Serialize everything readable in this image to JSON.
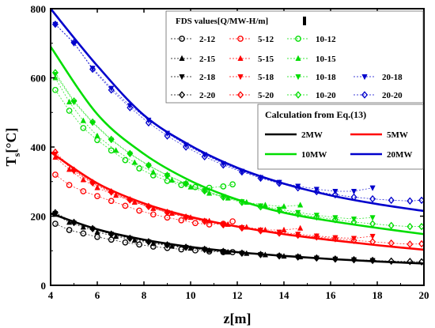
{
  "chart_data": {
    "type": "scatter",
    "xlabel": "z[m]",
    "ylabel_main": "T",
    "ylabel_sub": "s",
    "ylabel_unit": "[°C]",
    "xlim": [
      4,
      20
    ],
    "ylim": [
      0,
      800
    ],
    "xticks": [
      4,
      6,
      8,
      10,
      12,
      14,
      16,
      18,
      20
    ],
    "yticks": [
      0,
      200,
      400,
      600,
      800
    ],
    "colors": {
      "2MW": "#000000",
      "5MW": "#ff0000",
      "10MW": "#00dd00",
      "20MW": "#0000cc"
    },
    "legend_fds_title": "FDS values[Q/MW-H/m]",
    "legend_calc_title": "Calculation from Eq.(13)",
    "fds_legend": [
      [
        "2-12",
        "5-12",
        "10-12",
        ""
      ],
      [
        "2-15",
        "5-15",
        "10-15",
        ""
      ],
      [
        "2-18",
        "5-18",
        "10-18",
        "20-18"
      ],
      [
        "2-20",
        "5-20",
        "10-20",
        "20-20"
      ]
    ],
    "calc_legend": [
      {
        "name": "2MW",
        "color": "#000000"
      },
      {
        "name": "5MW",
        "color": "#ff0000"
      },
      {
        "name": "10MW",
        "color": "#00dd00"
      },
      {
        "name": "20MW",
        "color": "#0000cc"
      }
    ],
    "calc_curves": [
      {
        "name": "2MW",
        "color": "#000000",
        "x": [
          4,
          6,
          8,
          10,
          12,
          14,
          16,
          18,
          20
        ],
        "y": [
          208,
          162,
          132,
          111,
          96,
          85,
          76,
          69,
          63
        ]
      },
      {
        "name": "5MW",
        "color": "#ff0000",
        "x": [
          4,
          6,
          8,
          10,
          12,
          14,
          16,
          18,
          20
        ],
        "y": [
          385,
          295,
          237,
          198,
          170,
          148,
          131,
          116,
          103
        ]
      },
      {
        "name": "10MW",
        "color": "#00dd00",
        "x": [
          4,
          6,
          8,
          10,
          12,
          14,
          16,
          18,
          20
        ],
        "y": [
          690,
          495,
          380,
          302,
          248,
          210,
          186,
          166,
          148
        ]
      },
      {
        "name": "20MW",
        "color": "#0000cc",
        "x": [
          4,
          6,
          8,
          10,
          12,
          14,
          16,
          18,
          20
        ],
        "y": [
          800,
          635,
          492,
          404,
          340,
          294,
          260,
          235,
          215
        ]
      }
    ],
    "fds_series": [
      {
        "name": "2-12",
        "color": "#000000",
        "marker": "circle",
        "x": [
          4.2,
          4.8,
          5.4,
          6.0,
          6.6,
          7.2,
          7.8,
          8.4,
          9.0,
          9.6,
          10.2,
          10.8,
          11.4,
          11.8
        ],
        "y": [
          178,
          160,
          150,
          140,
          132,
          124,
          118,
          112,
          108,
          104,
          101,
          98,
          96,
          96
        ]
      },
      {
        "name": "2-15",
        "color": "#000000",
        "marker": "triangle-up",
        "x": [
          4.2,
          4.8,
          5.4,
          6.0,
          6.8,
          7.6,
          8.4,
          9.2,
          10.0,
          10.8,
          11.6,
          12.4,
          13.2,
          14.0,
          14.7
        ],
        "y": [
          205,
          182,
          168,
          154,
          141,
          130,
          121,
          113,
          107,
          101,
          96,
          92,
          88,
          84,
          82
        ]
      },
      {
        "name": "2-18",
        "color": "#000000",
        "marker": "triangle-down",
        "x": [
          4.2,
          5.0,
          5.8,
          6.6,
          7.4,
          8.2,
          9.0,
          9.8,
          10.6,
          11.4,
          12.2,
          13.0,
          13.8,
          14.6,
          15.4,
          16.2,
          17.0,
          17.8
        ],
        "y": [
          208,
          180,
          163,
          148,
          136,
          126,
          117,
          110,
          104,
          98,
          93,
          89,
          85,
          82,
          79,
          76,
          74,
          72
        ]
      },
      {
        "name": "2-20",
        "color": "#000000",
        "marker": "diamond",
        "x": [
          4.2,
          5.0,
          5.8,
          6.6,
          7.4,
          8.2,
          9.0,
          9.8,
          10.6,
          11.4,
          12.2,
          13.0,
          13.8,
          14.6,
          15.4,
          16.2,
          17.0,
          17.8,
          18.6,
          19.4,
          19.9
        ],
        "y": [
          210,
          182,
          164,
          148,
          136,
          126,
          117,
          110,
          104,
          98,
          93,
          89,
          85,
          82,
          79,
          76,
          74,
          72,
          70,
          69,
          68
        ]
      },
      {
        "name": "5-12",
        "color": "#ff0000",
        "marker": "circle",
        "x": [
          4.2,
          4.8,
          5.4,
          6.0,
          6.6,
          7.2,
          7.8,
          8.4,
          9.0,
          9.6,
          10.2,
          10.8,
          11.4,
          11.8
        ],
        "y": [
          320,
          290,
          272,
          258,
          244,
          230,
          216,
          205,
          196,
          188,
          180,
          176,
          178,
          185
        ]
      },
      {
        "name": "5-15",
        "color": "#ff0000",
        "marker": "triangle-up",
        "x": [
          4.2,
          4.8,
          5.4,
          6.0,
          6.8,
          7.6,
          8.4,
          9.2,
          10.0,
          10.8,
          11.6,
          12.4,
          13.2,
          14.0,
          14.7
        ],
        "y": [
          370,
          335,
          305,
          282,
          260,
          240,
          222,
          208,
          196,
          186,
          176,
          168,
          160,
          160,
          165
        ]
      },
      {
        "name": "5-18",
        "color": "#ff0000",
        "marker": "triangle-down",
        "x": [
          4.2,
          5.0,
          5.8,
          6.6,
          7.4,
          8.2,
          9.0,
          9.8,
          10.6,
          11.4,
          12.2,
          13.0,
          13.8,
          14.6,
          15.4,
          16.2,
          17.0,
          17.8
        ],
        "y": [
          380,
          330,
          295,
          268,
          246,
          227,
          211,
          197,
          186,
          176,
          167,
          160,
          154,
          148,
          143,
          138,
          136,
          142
        ]
      },
      {
        "name": "5-20",
        "color": "#ff0000",
        "marker": "diamond",
        "x": [
          4.2,
          5.0,
          5.8,
          6.6,
          7.4,
          8.2,
          9.0,
          9.8,
          10.6,
          11.4,
          12.2,
          13.0,
          13.8,
          14.6,
          15.4,
          16.2,
          17.0,
          17.8,
          18.6,
          19.4,
          19.9
        ],
        "y": [
          385,
          333,
          297,
          270,
          247,
          228,
          211,
          197,
          185,
          175,
          166,
          158,
          151,
          145,
          140,
          135,
          130,
          126,
          122,
          119,
          120
        ]
      },
      {
        "name": "10-12",
        "color": "#00dd00",
        "marker": "circle",
        "x": [
          4.2,
          4.8,
          5.4,
          6.0,
          6.6,
          7.2,
          7.8,
          8.4,
          9.0,
          9.6,
          10.2,
          10.8,
          11.4,
          11.8
        ],
        "y": [
          565,
          505,
          455,
          420,
          390,
          362,
          338,
          318,
          302,
          290,
          284,
          282,
          286,
          292
        ]
      },
      {
        "name": "10-15",
        "color": "#00dd00",
        "marker": "triangle-up",
        "x": [
          4.2,
          4.8,
          5.4,
          6.0,
          6.8,
          7.6,
          8.4,
          9.2,
          10.0,
          10.8,
          11.6,
          12.4,
          13.2,
          14.0,
          14.7
        ],
        "y": [
          600,
          530,
          476,
          432,
          390,
          355,
          327,
          304,
          284,
          266,
          252,
          240,
          232,
          228,
          232
        ]
      },
      {
        "name": "10-18",
        "color": "#00dd00",
        "marker": "triangle-down",
        "x": [
          4.2,
          5.0,
          5.8,
          6.6,
          7.4,
          8.2,
          9.0,
          9.8,
          10.6,
          11.4,
          12.2,
          13.0,
          13.8,
          14.6,
          15.4,
          16.2,
          17.0,
          17.8
        ],
        "y": [
          610,
          530,
          470,
          420,
          380,
          346,
          318,
          294,
          274,
          257,
          242,
          230,
          220,
          211,
          203,
          196,
          192,
          196
        ]
      },
      {
        "name": "10-20",
        "color": "#00dd00",
        "marker": "diamond",
        "x": [
          4.2,
          5.0,
          5.8,
          6.6,
          7.4,
          8.2,
          9.0,
          9.8,
          10.6,
          11.4,
          12.2,
          13.0,
          13.8,
          14.6,
          15.4,
          16.2,
          17.0,
          17.8,
          18.6,
          19.4,
          19.9
        ],
        "y": [
          615,
          533,
          472,
          422,
          381,
          347,
          318,
          294,
          273,
          255,
          240,
          227,
          216,
          206,
          198,
          190,
          183,
          178,
          173,
          170,
          170
        ]
      },
      {
        "name": "20-18",
        "color": "#0000cc",
        "marker": "triangle-down",
        "x": [
          4.2,
          5.0,
          5.8,
          6.6,
          7.4,
          8.2,
          9.0,
          9.8,
          10.6,
          11.4,
          12.2,
          13.0,
          13.8,
          14.6,
          15.4,
          16.2,
          17.0,
          17.8
        ],
        "y": [
          755,
          700,
          628,
          570,
          520,
          478,
          440,
          406,
          378,
          352,
          330,
          312,
          298,
          287,
          278,
          272,
          272,
          282
        ]
      },
      {
        "name": "20-20",
        "color": "#0000cc",
        "marker": "diamond",
        "x": [
          4.2,
          5.0,
          5.8,
          6.6,
          7.4,
          8.2,
          9.0,
          9.8,
          10.6,
          11.4,
          12.2,
          13.0,
          13.8,
          14.6,
          15.4,
          16.2,
          17.0,
          17.8,
          18.6,
          19.4,
          19.9
        ],
        "y": [
          755,
          702,
          625,
          565,
          514,
          470,
          432,
          400,
          372,
          348,
          328,
          310,
          295,
          282,
          271,
          262,
          255,
          250,
          246,
          244,
          246
        ]
      }
    ]
  }
}
